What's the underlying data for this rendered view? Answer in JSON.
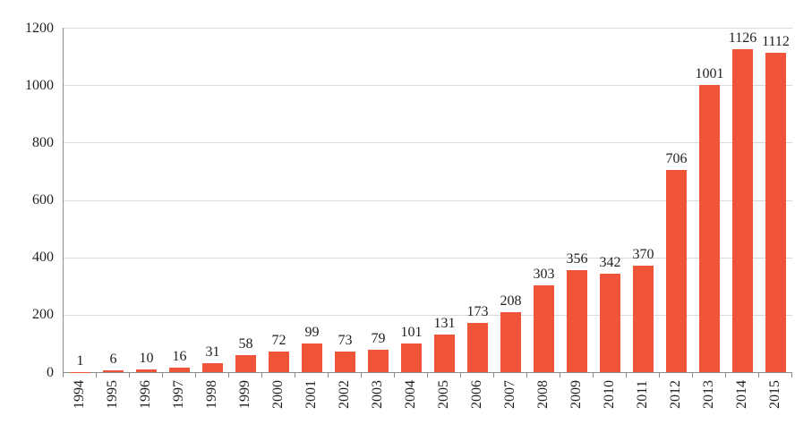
{
  "chart_data": {
    "type": "bar",
    "title": "",
    "xlabel": "",
    "ylabel": "",
    "categories": [
      "1994",
      "1995",
      "1996",
      "1997",
      "1998",
      "1999",
      "2000",
      "2001",
      "2002",
      "2003",
      "2004",
      "2005",
      "2006",
      "2007",
      "2008",
      "2009",
      "2010",
      "2011",
      "2012",
      "2013",
      "2014",
      "2015"
    ],
    "values": [
      1,
      6,
      10,
      16,
      31,
      58,
      72,
      99,
      73,
      79,
      101,
      131,
      173,
      208,
      303,
      356,
      342,
      370,
      706,
      1001,
      1126,
      1112
    ],
    "yticks": [
      0,
      200,
      400,
      600,
      800,
      1000,
      1200
    ],
    "ylim": [
      0,
      1200
    ],
    "grid": true,
    "legend": "none",
    "data_labels": true,
    "x_tick_rotation": -90,
    "colors": {
      "bar": "#F0553A",
      "gridline": "#D9D9D9",
      "axis": "#8A8A8A",
      "text": "#1F1F1F",
      "background": "#FFFFFF"
    }
  }
}
